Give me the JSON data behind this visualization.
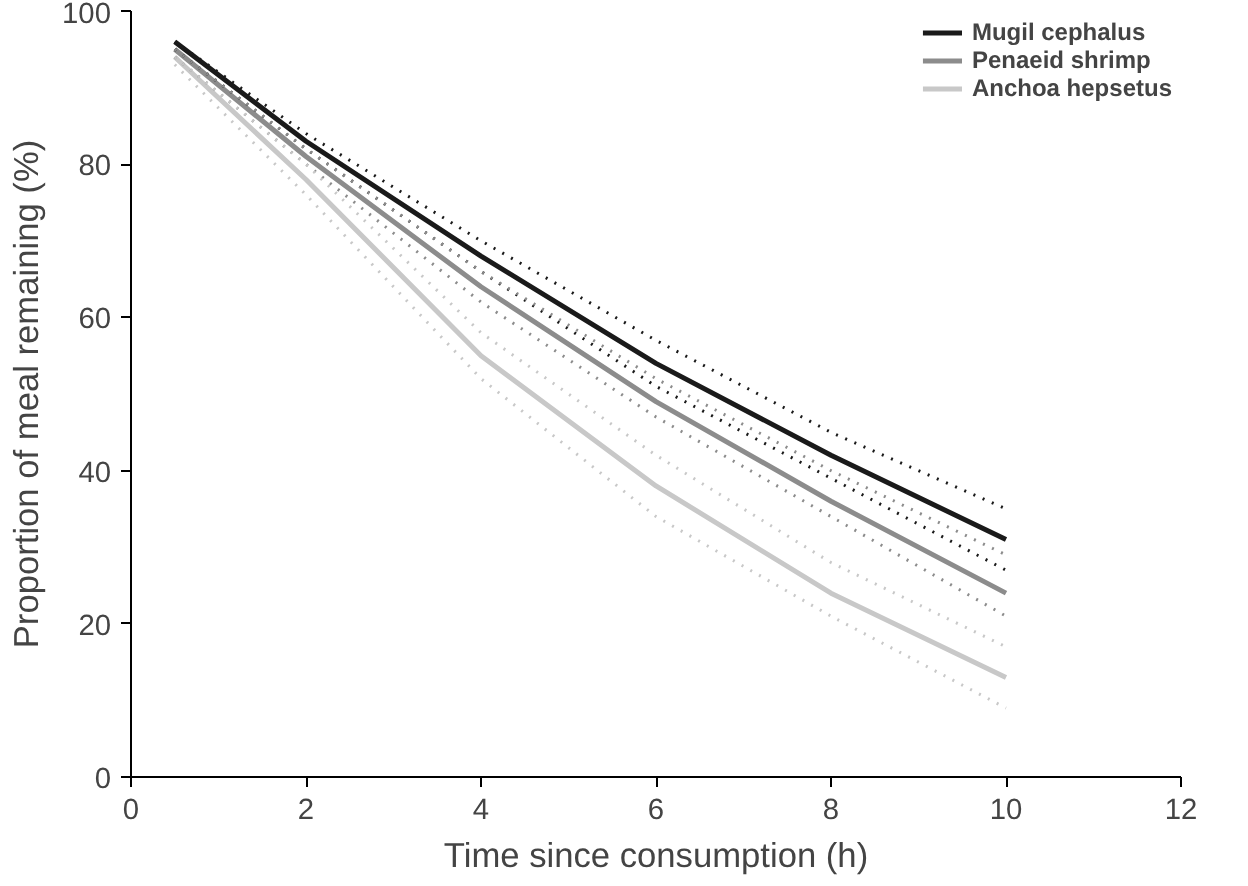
{
  "chart_data": {
    "type": "line",
    "xlabel": "Time since consumption (h)",
    "ylabel": "Proportion of meal remaining (%)",
    "x": [
      0.5,
      2,
      4,
      6,
      8,
      10
    ],
    "series": [
      {
        "name": "Mugil cephalus",
        "color": "#1a1a1a",
        "values": [
          96,
          83,
          68,
          54,
          42,
          31
        ]
      },
      {
        "name": "Penaeid shrimp",
        "color": "#8c8c8c",
        "values": [
          95,
          81,
          64,
          49,
          36,
          24
        ]
      },
      {
        "name": "Anchoa hepsetus",
        "color": "#c8c8c8",
        "values": [
          94,
          78,
          55,
          38,
          24,
          13
        ]
      },
      {
        "color": "#1a1a1a",
        "line_style": "dotted",
        "values": [
          95,
          82,
          66,
          51,
          39,
          27
        ]
      },
      {
        "color": "#1a1a1a",
        "line_style": "dotted",
        "values": [
          96,
          84,
          70,
          57,
          45,
          35
        ]
      },
      {
        "color": "#8c8c8c",
        "line_style": "dotted",
        "values": [
          94,
          80,
          62,
          47,
          34,
          21
        ]
      },
      {
        "color": "#8c8c8c",
        "line_style": "dotted",
        "values": [
          95,
          82,
          66,
          52,
          40,
          29
        ]
      },
      {
        "color": "#c8c8c8",
        "line_style": "dotted",
        "values": [
          93,
          76,
          52,
          34,
          21,
          9
        ]
      },
      {
        "color": "#c8c8c8",
        "line_style": "dotted",
        "values": [
          94,
          80,
          58,
          42,
          28,
          17
        ]
      }
    ],
    "xlim": [
      0,
      12
    ],
    "xticks": [
      0,
      2,
      4,
      6,
      8,
      10,
      12
    ],
    "ylim": [
      0,
      100
    ],
    "yticks": [
      0,
      20,
      40,
      60,
      80,
      100
    ],
    "legend": "top right",
    "line_style": "solid"
  }
}
